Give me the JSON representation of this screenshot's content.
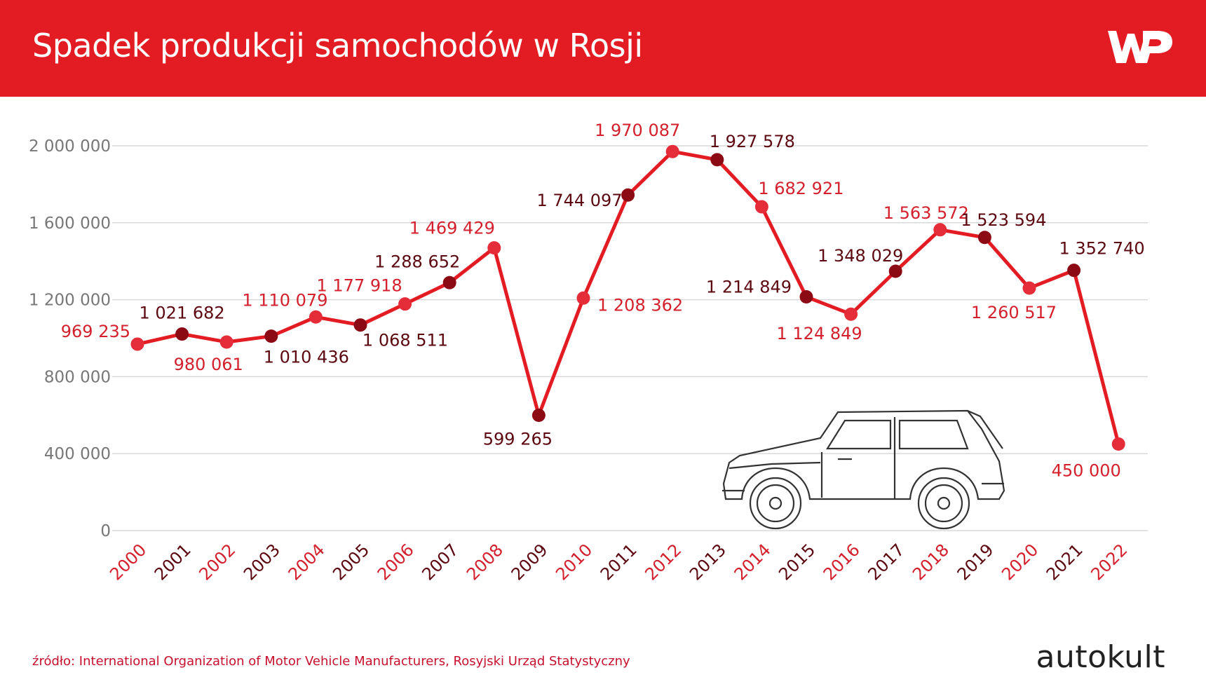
{
  "header": {
    "title": "Spadek produkcji samochodów w Rosji"
  },
  "logo": {
    "icon": "wp-logo-icon"
  },
  "colors": {
    "accent": "#e31b23",
    "light_point": "#e52d3a",
    "dark_point": "#8b0a14",
    "light_label": "#d4202c",
    "dark_label": "#5c0810",
    "axis_text": "#777777",
    "grid": "#d9d9d9"
  },
  "chart_data": {
    "type": "line",
    "x": [
      "2000",
      "2001",
      "2002",
      "2003",
      "2004",
      "2005",
      "2006",
      "2007",
      "2008",
      "2009",
      "2010",
      "2011",
      "2012",
      "2013",
      "2014",
      "2015",
      "2016",
      "2017",
      "2018",
      "2019",
      "2020",
      "2021",
      "2022"
    ],
    "series": [
      {
        "values": [
          969235,
          1021682,
          980061,
          1010436,
          1110079,
          1068511,
          1177918,
          1288652,
          1469429,
          599265,
          1208362,
          1744097,
          1970087,
          1927578,
          1682921,
          1214849,
          1124849,
          1348029,
          1563572,
          1523594,
          1260517,
          1352740,
          450000
        ]
      }
    ],
    "data_labels": [
      "969 235",
      "1 021 682",
      "980 061",
      "1 010 436",
      "1 110 079",
      "1 068 511",
      "1 177 918",
      "1 288 652",
      "1 469 429",
      "599 265",
      "1 208 362",
      "1 744 097",
      "1 970 087",
      "1 927 578",
      "1 682 921",
      "1 214 849",
      "1 124 849",
      "1 348 029",
      "1 563 572",
      "1 523 594",
      "1 260 517",
      "1 352 740",
      "450 000"
    ],
    "y_ticks": [
      0,
      400000,
      800000,
      1200000,
      1600000,
      2000000
    ],
    "y_tick_labels": [
      "0",
      "400 000",
      "800 000",
      "1 200 000",
      "1 600 000",
      "2 000 000"
    ],
    "ylim": [
      0,
      2000000
    ],
    "grid": true,
    "xlabel": "",
    "ylabel": ""
  },
  "footer": {
    "source": "źródło: International Organization of Motor Vehicle Manufacturers, Rosyjski Urząd Statystyczny",
    "brand": "autokult"
  }
}
